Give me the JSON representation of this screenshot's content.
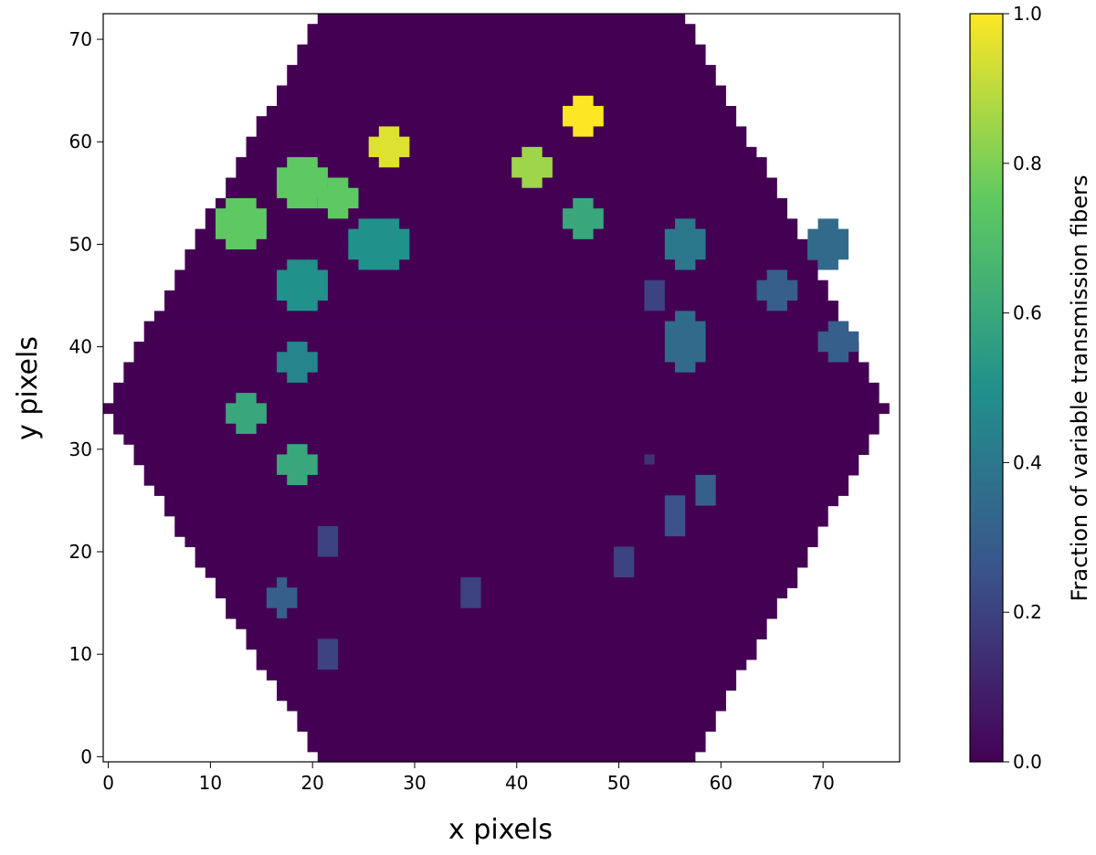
{
  "chart_data": {
    "type": "heatmap",
    "xlabel": "x pixels",
    "ylabel": "y pixels",
    "colorbar_label": "Fraction of variable transmission fibers",
    "colormap": "viridis",
    "xlim": [
      -0.5,
      77.5
    ],
    "ylim": [
      -0.5,
      72.5
    ],
    "xticks": [
      0,
      10,
      20,
      30,
      40,
      50,
      60,
      70
    ],
    "yticks": [
      0,
      10,
      20,
      30,
      40,
      50,
      60,
      70
    ],
    "clim": [
      0,
      1
    ],
    "cticks": [
      {
        "value": 0,
        "label": "0.0"
      },
      {
        "value": 0.2,
        "label": "0.2"
      },
      {
        "value": 0.4,
        "label": "0.4"
      },
      {
        "value": 0.6,
        "label": "0.6"
      },
      {
        "value": 0.8,
        "label": "0.8"
      },
      {
        "value": 1,
        "label": "1.0"
      }
    ],
    "background": {
      "value": 0,
      "y": [
        0,
        1,
        2,
        3,
        4,
        5,
        6,
        7,
        8,
        9,
        10,
        11,
        12,
        13,
        14,
        15,
        16,
        17,
        18,
        19,
        20,
        21,
        22,
        23,
        24,
        25,
        26,
        27,
        28,
        29,
        30,
        31,
        32,
        33,
        34,
        35,
        36,
        37,
        38,
        39,
        40,
        41,
        42,
        43,
        44,
        45,
        46,
        47,
        48,
        49,
        50,
        51,
        52,
        53,
        54,
        55,
        56,
        57,
        58,
        59,
        60,
        61,
        62,
        63,
        64,
        65,
        66,
        67,
        68,
        69,
        70,
        71,
        72
      ],
      "x_start": [
        21,
        20,
        20,
        19,
        19,
        18,
        17,
        17,
        16,
        15,
        15,
        14,
        14,
        13,
        12,
        12,
        11,
        11,
        10,
        9,
        9,
        8,
        7,
        7,
        6,
        6,
        5,
        4,
        4,
        3,
        3,
        2,
        1,
        1,
        0,
        1,
        1,
        2,
        2,
        3,
        3,
        4,
        4,
        5,
        6,
        6,
        7,
        7,
        8,
        8,
        9,
        9,
        10,
        10,
        11,
        12,
        12,
        13,
        13,
        14,
        14,
        15,
        15,
        16,
        17,
        17,
        18,
        18,
        19,
        19,
        20,
        20,
        21
      ],
      "x_end": [
        57,
        58,
        58,
        59,
        59,
        60,
        60,
        61,
        61,
        62,
        63,
        63,
        64,
        64,
        65,
        65,
        66,
        67,
        67,
        68,
        68,
        69,
        69,
        70,
        70,
        71,
        72,
        72,
        73,
        73,
        74,
        74,
        75,
        75,
        76,
        75,
        75,
        74,
        74,
        73,
        73,
        72,
        72,
        71,
        71,
        70,
        70,
        69,
        69,
        68,
        68,
        67,
        67,
        66,
        66,
        65,
        65,
        64,
        64,
        63,
        62,
        62,
        61,
        61,
        60,
        60,
        59,
        59,
        58,
        58,
        57,
        57,
        56
      ]
    },
    "spots": [
      {
        "x": [
          45,
          48
        ],
        "y": [
          61,
          64
        ],
        "value": 1.0
      },
      {
        "x": [
          26,
          29
        ],
        "y": [
          58,
          61
        ],
        "value": 0.95
      },
      {
        "x": [
          40,
          43
        ],
        "y": [
          56,
          59
        ],
        "value": 0.85
      },
      {
        "x": [
          17,
          21
        ],
        "y": [
          54,
          58
        ],
        "value": 0.75
      },
      {
        "x": [
          21,
          24
        ],
        "y": [
          53,
          56
        ],
        "value": 0.75
      },
      {
        "x": [
          11,
          15
        ],
        "y": [
          50,
          54
        ],
        "value": 0.75
      },
      {
        "x": [
          45,
          48
        ],
        "y": [
          51,
          54
        ],
        "value": 0.6
      },
      {
        "x": [
          24,
          29
        ],
        "y": [
          48,
          52
        ],
        "value": 0.5
      },
      {
        "x": [
          55,
          58
        ],
        "y": [
          48,
          52
        ],
        "value": 0.4
      },
      {
        "x": [
          69,
          72
        ],
        "y": [
          48,
          52
        ],
        "value": 0.35
      },
      {
        "x": [
          17,
          21
        ],
        "y": [
          44,
          48
        ],
        "value": 0.5
      },
      {
        "x": [
          64,
          67
        ],
        "y": [
          44,
          47
        ],
        "value": 0.3
      },
      {
        "x": [
          55,
          58
        ],
        "y": [
          38,
          43
        ],
        "value": 0.35
      },
      {
        "x": [
          70,
          73
        ],
        "y": [
          39,
          42
        ],
        "value": 0.3
      },
      {
        "x": [
          17,
          20
        ],
        "y": [
          37,
          40
        ],
        "value": 0.45
      },
      {
        "x": [
          12,
          15
        ],
        "y": [
          32,
          35
        ],
        "value": 0.6
      },
      {
        "x": [
          17,
          20
        ],
        "y": [
          27,
          30
        ],
        "value": 0.6
      },
      {
        "x": [
          58,
          59
        ],
        "y": [
          25,
          27
        ],
        "value": 0.3
      },
      {
        "x": [
          55,
          56
        ],
        "y": [
          22,
          25
        ],
        "value": 0.25
      },
      {
        "x": [
          21,
          22
        ],
        "y": [
          20,
          22
        ],
        "value": 0.2
      },
      {
        "x": [
          50,
          51
        ],
        "y": [
          18,
          20
        ],
        "value": 0.2
      },
      {
        "x": [
          16,
          18
        ],
        "y": [
          14,
          17
        ],
        "value": 0.3
      },
      {
        "x": [
          35,
          36
        ],
        "y": [
          15,
          17
        ],
        "value": 0.2
      },
      {
        "x": [
          21,
          22
        ],
        "y": [
          9,
          11
        ],
        "value": 0.2
      },
      {
        "x": [
          53,
          54
        ],
        "y": [
          44,
          46
        ],
        "value": 0.2
      },
      {
        "x": [
          53,
          53
        ],
        "y": [
          29,
          29
        ],
        "value": 0.15
      }
    ]
  }
}
